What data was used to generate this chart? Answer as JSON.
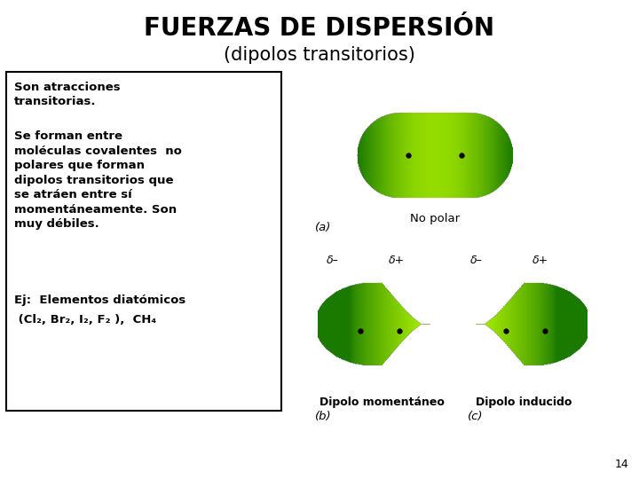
{
  "title": "FUERZAS DE DISPERSIÓN",
  "subtitle": "(dipolos transitorios)",
  "background_color": "#ffffff",
  "label_a": "(a)",
  "label_b": "(b)",
  "label_c": "(c)",
  "no_polar_label": "No polar",
  "dipolo_momentaneo_label": "Dipolo momentáneo",
  "dipolo_inducido_label": "Dipolo inducido",
  "delta_minus": "δ–",
  "delta_plus": "δ+",
  "page_number": "14",
  "green_dark": "#1a7a00",
  "green_light": "#aaee00",
  "text_line1": "Son atracciones\ntransitorias.",
  "text_line2": "Se forman entre\nmoléculas covalentes  no\npolares que forman\ndipolos transitorios que\nse atráen entre sí\nmomentáneamente. Son\nmuy débiles.",
  "text_line3a": "Ej:  Elementos diatómicos",
  "text_line3b": " (Cl₂, Br₂, I₂, F₂ ),  CH₄"
}
